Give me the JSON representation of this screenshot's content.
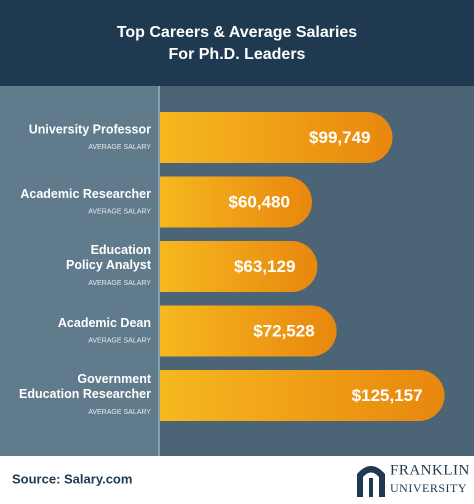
{
  "chart_data": {
    "type": "bar",
    "orientation": "horizontal",
    "title": [
      "Top Careers & Average Salaries",
      "For Ph.D. Leaders"
    ],
    "categories": [
      "University Professor",
      "Academic Researcher",
      "Education Policy Analyst",
      "Academic Dean",
      "Government Education Researcher"
    ],
    "bar_sublabel": "AVERAGE SALARY",
    "values": [
      99749,
      60480,
      63129,
      72528,
      125157
    ],
    "value_labels": [
      "$99,749",
      "$60,480",
      "$63,129",
      "$72,528",
      "$125,157"
    ],
    "gradient": [
      "#f6b81f",
      "#e8870e"
    ],
    "source": "Source: Salary.com",
    "brand": [
      "FRANKLIN",
      "UNIVERSITY"
    ]
  }
}
